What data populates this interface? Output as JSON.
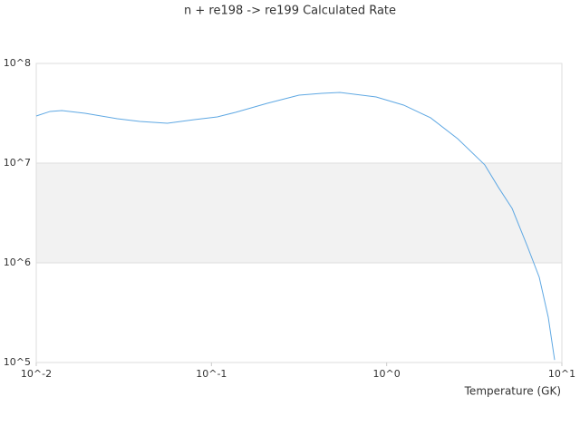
{
  "chart_data": {
    "type": "line",
    "title": "n + re198 -> re199 Calculated Rate",
    "x_label": "Temperature (GK)",
    "x_scale": "log",
    "y_scale": "log",
    "xlim": [
      0.01,
      10
    ],
    "ylim": [
      100000,
      100000000
    ],
    "xticks": [
      {
        "value": 0.01,
        "label": "10^-2"
      },
      {
        "value": 0.1,
        "label": "10^-1"
      },
      {
        "value": 1,
        "label": "10^0"
      },
      {
        "value": 10,
        "label": "10^1"
      }
    ],
    "yticks": [
      {
        "value": 100000,
        "label": "10^5"
      },
      {
        "value": 1000000,
        "label": "10^6"
      },
      {
        "value": 10000000,
        "label": "10^7"
      },
      {
        "value": 100000000,
        "label": "10^8"
      }
    ],
    "grid": true,
    "alternate_bands": true,
    "band_color": "#f2f2f2",
    "series": [
      {
        "color": "#5fa8e3",
        "x": [
          0.01,
          0.012,
          0.014,
          0.019,
          0.029,
          0.039,
          0.056,
          0.08,
          0.108,
          0.137,
          0.208,
          0.316,
          0.426,
          0.541,
          0.871,
          1.25,
          1.78,
          2.54,
          3.63,
          4.35,
          5.2,
          6.36,
          7.43,
          8.36,
          9.09
        ],
        "values": [
          29700000,
          33000000,
          33700000,
          31600000,
          27900000,
          26200000,
          25100000,
          27300000,
          29100000,
          32300000,
          39800000,
          48100000,
          50100000,
          51200000,
          46100000,
          38200000,
          28500000,
          17600000,
          9600000,
          5690000,
          3510000,
          1460000,
          716000,
          285000,
          106000
        ]
      }
    ]
  }
}
